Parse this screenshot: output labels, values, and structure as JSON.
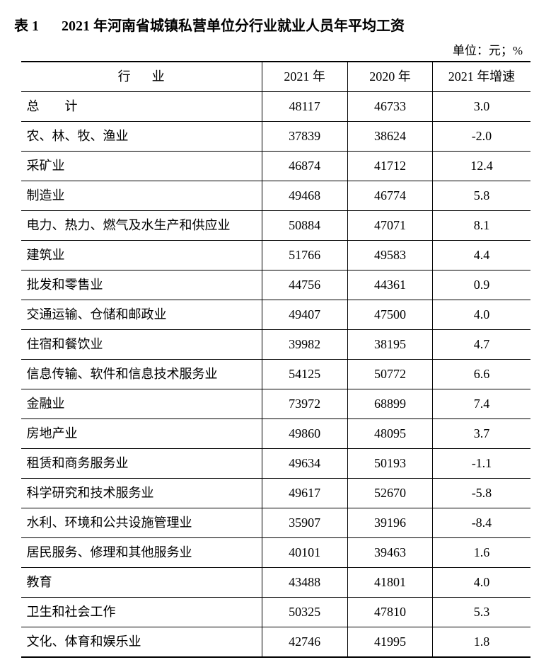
{
  "header": {
    "table_number": "表 1",
    "title": "2021 年河南省城镇私营单位分行业就业人员年平均工资",
    "unit": "单位：元；%"
  },
  "columns": {
    "industry": "行业",
    "y2021": "2021 年",
    "y2020": "2020 年",
    "growth": "2021 年增速"
  },
  "rows": [
    {
      "industry": "总　　计",
      "y2021": "48117",
      "y2020": "46733",
      "growth": "3.0",
      "is_total": true
    },
    {
      "industry": "农、林、牧、渔业",
      "y2021": "37839",
      "y2020": "38624",
      "growth": "-2.0"
    },
    {
      "industry": "采矿业",
      "y2021": "46874",
      "y2020": "41712",
      "growth": "12.4"
    },
    {
      "industry": "制造业",
      "y2021": "49468",
      "y2020": "46774",
      "growth": "5.8"
    },
    {
      "industry": "电力、热力、燃气及水生产和供应业",
      "y2021": "50884",
      "y2020": "47071",
      "growth": "8.1"
    },
    {
      "industry": "建筑业",
      "y2021": "51766",
      "y2020": "49583",
      "growth": "4.4"
    },
    {
      "industry": "批发和零售业",
      "y2021": "44756",
      "y2020": "44361",
      "growth": "0.9"
    },
    {
      "industry": "交通运输、仓储和邮政业",
      "y2021": "49407",
      "y2020": "47500",
      "growth": "4.0"
    },
    {
      "industry": "住宿和餐饮业",
      "y2021": "39982",
      "y2020": "38195",
      "growth": "4.7"
    },
    {
      "industry": "信息传输、软件和信息技术服务业",
      "y2021": "54125",
      "y2020": "50772",
      "growth": "6.6"
    },
    {
      "industry": "金融业",
      "y2021": "73972",
      "y2020": "68899",
      "growth": "7.4"
    },
    {
      "industry": "房地产业",
      "y2021": "49860",
      "y2020": "48095",
      "growth": "3.7"
    },
    {
      "industry": "租赁和商务服务业",
      "y2021": "49634",
      "y2020": "50193",
      "growth": "-1.1"
    },
    {
      "industry": "科学研究和技术服务业",
      "y2021": "49617",
      "y2020": "52670",
      "growth": "-5.8"
    },
    {
      "industry": "水利、环境和公共设施管理业",
      "y2021": "35907",
      "y2020": "39196",
      "growth": "-8.4"
    },
    {
      "industry": "居民服务、修理和其他服务业",
      "y2021": "40101",
      "y2020": "39463",
      "growth": "1.6"
    },
    {
      "industry": "教育",
      "y2021": "43488",
      "y2020": "41801",
      "growth": "4.0"
    },
    {
      "industry": "卫生和社会工作",
      "y2021": "50325",
      "y2020": "47810",
      "growth": "5.3"
    },
    {
      "industry": "文化、体育和娱乐业",
      "y2021": "42746",
      "y2020": "41995",
      "growth": "1.8"
    }
  ],
  "style": {
    "background_color": "#ffffff",
    "text_color": "#000000",
    "border_color": "#000000",
    "title_fontsize": 20,
    "cell_fontsize": 18,
    "unit_fontsize": 17,
    "col_widths": {
      "industry": 320,
      "y2021": 110,
      "y2020": 110,
      "growth": 130
    },
    "outer_border_width": 2,
    "inner_border_width": 1
  }
}
